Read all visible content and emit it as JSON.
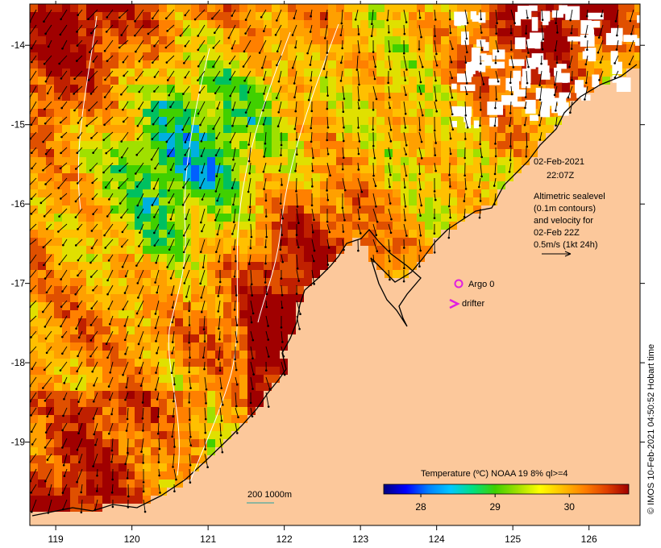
{
  "map": {
    "datetime_line1": "02-Feb-2021",
    "datetime_line2": "22:07Z",
    "legend_lines": [
      "Altimetric sealevel",
      "(0.1m contours)",
      "and velocity for",
      "02-Feb 22Z",
      "0.5m/s (1kt 24h)"
    ],
    "argo_label": "Argo 0",
    "drifter_label": "drifter",
    "isobath_label": "200  1000m",
    "colorbar": {
      "title": "Temperature (ºC) NOAA 19 8% ql>=4",
      "ticks": [
        "28",
        "29",
        "30"
      ],
      "tick_values": [
        28,
        29,
        30
      ],
      "range": [
        27.5,
        30.8
      ],
      "colors": [
        "#000080",
        "#0000ff",
        "#0080ff",
        "#00c8ff",
        "#00e080",
        "#40d000",
        "#a0e000",
        "#ffff00",
        "#ffc000",
        "#ff8000",
        "#e04000",
        "#a00000"
      ]
    },
    "credit": "© IMOS 10-Feb-2021 04:50:52 Hobart time",
    "x_axis": {
      "labels": [
        "119",
        "120",
        "121",
        "122",
        "123",
        "124",
        "125",
        "126"
      ],
      "values": [
        119,
        120,
        121,
        122,
        123,
        124,
        125,
        126
      ]
    },
    "y_axis": {
      "labels": [
        "-14",
        "-15",
        "-16",
        "-17",
        "-18",
        "-19"
      ],
      "values": [
        -14,
        -15,
        -16,
        -17,
        -18,
        -19
      ]
    },
    "colors": {
      "land": "#fcc89b",
      "coast": "#000000",
      "argo": "#e020e0",
      "drifter": "#e020e0"
    }
  }
}
